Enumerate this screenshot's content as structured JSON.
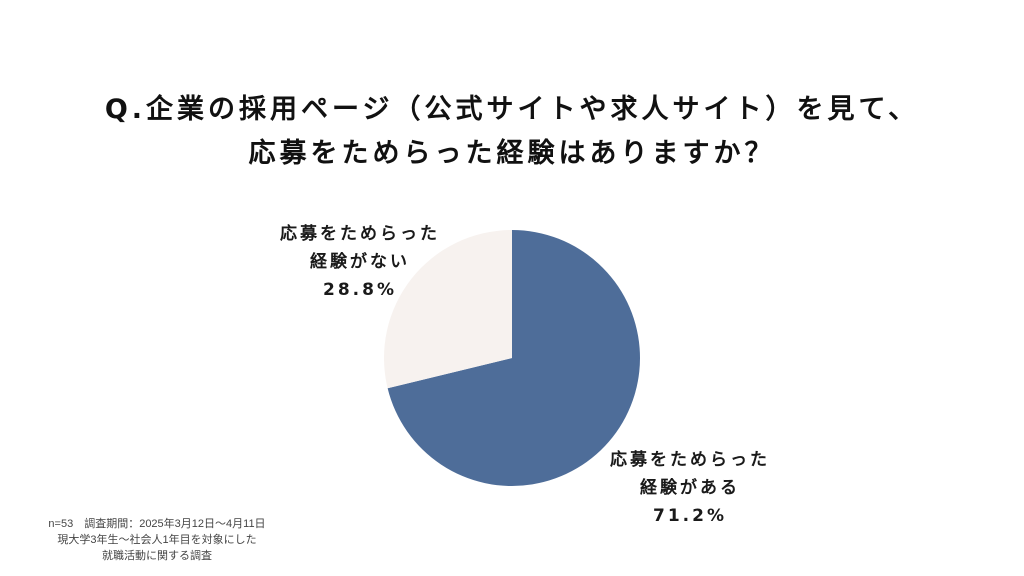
{
  "title": {
    "line1": "Q.企業の採用ページ（公式サイトや求人サイト）を見て、",
    "line2": "応募をためらった経験はありますか？"
  },
  "chart_data": {
    "type": "pie",
    "slices": [
      {
        "label_line1": "応募をためらった",
        "label_line2": "経験がある",
        "value": 71.2,
        "value_label": "71.2%",
        "color": "#4e6d99"
      },
      {
        "label_line1": "応募をためらった",
        "label_line2": "経験がない",
        "value": 28.8,
        "value_label": "28.8%",
        "color": "#f7f2ef"
      }
    ]
  },
  "footnote": {
    "line1": "n=53　調査期間：2025年3月12日〜4月11日",
    "line2": "現大学3年生〜社会人1年目を対象にした",
    "line3": "就職活動に関する調査"
  }
}
